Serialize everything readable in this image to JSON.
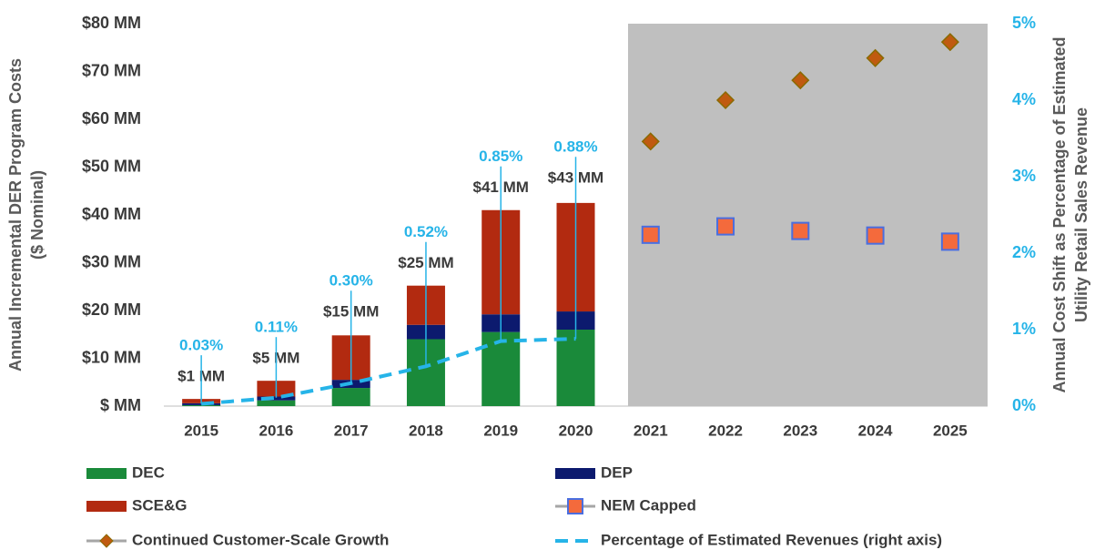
{
  "chart_data": {
    "type": "bar",
    "ylabel": [
      "Annual Incremental DER Program Costs",
      "($ Nominal)"
    ],
    "y2label": [
      "Annual Cost Shift as Percentage of Estimated",
      "Utility Retail Sales Revenue"
    ],
    "categories": [
      "2015",
      "2016",
      "2017",
      "2018",
      "2019",
      "2020",
      "2021",
      "2022",
      "2023",
      "2024",
      "2025"
    ],
    "ylim": [
      0,
      80
    ],
    "yticks": [
      {
        "value": 0,
        "label": "$ MM"
      },
      {
        "value": 10,
        "label": "$10  MM"
      },
      {
        "value": 20,
        "label": "$20  MM"
      },
      {
        "value": 30,
        "label": "$30  MM"
      },
      {
        "value": 40,
        "label": "$40  MM"
      },
      {
        "value": 50,
        "label": "$50  MM"
      },
      {
        "value": 60,
        "label": "$60  MM"
      },
      {
        "value": 70,
        "label": "$70  MM"
      },
      {
        "value": 80,
        "label": "$80  MM"
      }
    ],
    "y2lim": [
      0,
      5
    ],
    "y2ticks": [
      {
        "value": 0,
        "label": "0%"
      },
      {
        "value": 1,
        "label": "1%"
      },
      {
        "value": 2,
        "label": "2%"
      },
      {
        "value": 3,
        "label": "3%"
      },
      {
        "value": 4,
        "label": "4%"
      },
      {
        "value": 5,
        "label": "5%"
      }
    ],
    "series": [
      {
        "name": "DEC",
        "kind": "bar",
        "color": "#1a8a3a",
        "values": [
          0.2,
          1.2,
          3.8,
          14,
          15.5,
          16,
          null,
          null,
          null,
          null,
          null
        ]
      },
      {
        "name": "DEP",
        "kind": "bar",
        "color": "#0c1a6e",
        "values": [
          0.4,
          0.8,
          1.7,
          3,
          3.7,
          3.8,
          null,
          null,
          null,
          null,
          null
        ]
      },
      {
        "name": "SCE&G",
        "kind": "bar",
        "color": "#b22a10",
        "values": [
          0.9,
          3.3,
          9.3,
          8.2,
          21.8,
          22.7,
          null,
          null,
          null,
          null,
          null
        ]
      },
      {
        "name": "NEM Capped",
        "kind": "square",
        "axis": "y2",
        "color": "#f46a3c",
        "values": [
          null,
          null,
          null,
          null,
          null,
          null,
          2.24,
          2.35,
          2.29,
          2.23,
          2.15
        ]
      },
      {
        "name": "Continued Customer-Scale Growth",
        "kind": "diamond",
        "axis": "y2",
        "color": "#c05a10",
        "values": [
          null,
          null,
          null,
          null,
          null,
          null,
          3.46,
          4.0,
          4.26,
          4.55,
          4.76
        ]
      },
      {
        "name": "Percentage of Estimated Revenues (right axis)",
        "kind": "dashed",
        "axis": "y2",
        "color": "#26b4e8",
        "values": [
          0.03,
          0.11,
          0.3,
          0.52,
          0.85,
          0.88,
          null,
          null,
          null,
          null,
          null
        ],
        "value_labels": [
          "0.03%",
          "0.11%",
          "0.30%",
          "0.52%",
          "0.85%",
          "0.88%",
          null,
          null,
          null,
          null,
          null
        ]
      }
    ],
    "totals": [
      1,
      5,
      15,
      25,
      41,
      43
    ],
    "total_labels": [
      "$1 MM",
      "$5 MM",
      "$15 MM",
      "$25 MM",
      "$41 MM",
      "$43 MM"
    ]
  }
}
